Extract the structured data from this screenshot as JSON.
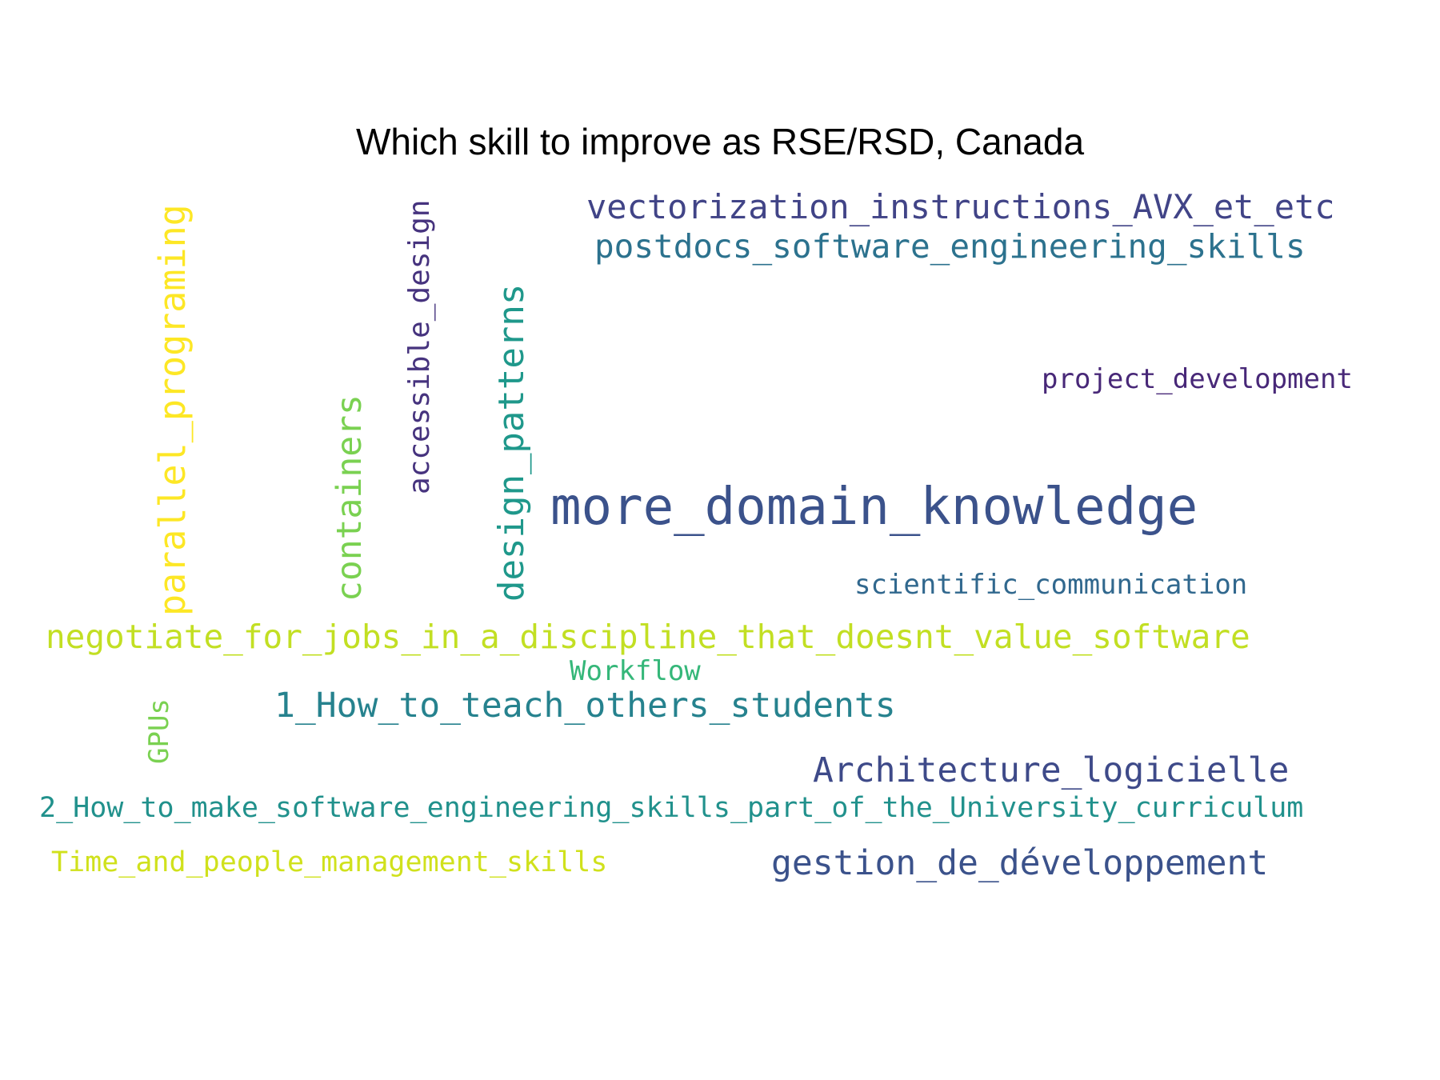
{
  "title": "Which skill to improve as RSE/RSD, Canada",
  "words": [
    {
      "text": "vectorization_instructions_AVX_et_etc",
      "color": "#414487"
    },
    {
      "text": "postdocs_software_engineering_skills",
      "color": "#2c728e"
    },
    {
      "text": "project_development",
      "color": "#482878"
    },
    {
      "text": "more_domain_knowledge",
      "color": "#3b528b"
    },
    {
      "text": "scientific_communication",
      "color": "#31688e"
    },
    {
      "text": "negotiate_for_jobs_in_a_discipline_that_doesnt_value_software",
      "color": "#c2df23"
    },
    {
      "text": "Workflow",
      "color": "#35b779"
    },
    {
      "text": "1_How_to_teach_others_students",
      "color": "#26828e"
    },
    {
      "text": "Architecture_logicielle",
      "color": "#3e4a89"
    },
    {
      "text": "2_How_to_make_software_engineering_skills_part_of_the_University_curriculum",
      "color": "#21918c"
    },
    {
      "text": "Time_and_people_management_skills",
      "color": "#d0e11c"
    },
    {
      "text": "gestion_de_développement",
      "color": "#3b528b"
    },
    {
      "text": "parallel_programing",
      "color": "#fde725"
    },
    {
      "text": "containers",
      "color": "#7ad151"
    },
    {
      "text": "accessible_design",
      "color": "#46337e"
    },
    {
      "text": "design_patterns",
      "color": "#1f988b"
    },
    {
      "text": "GPUs",
      "color": "#7ad151"
    }
  ]
}
